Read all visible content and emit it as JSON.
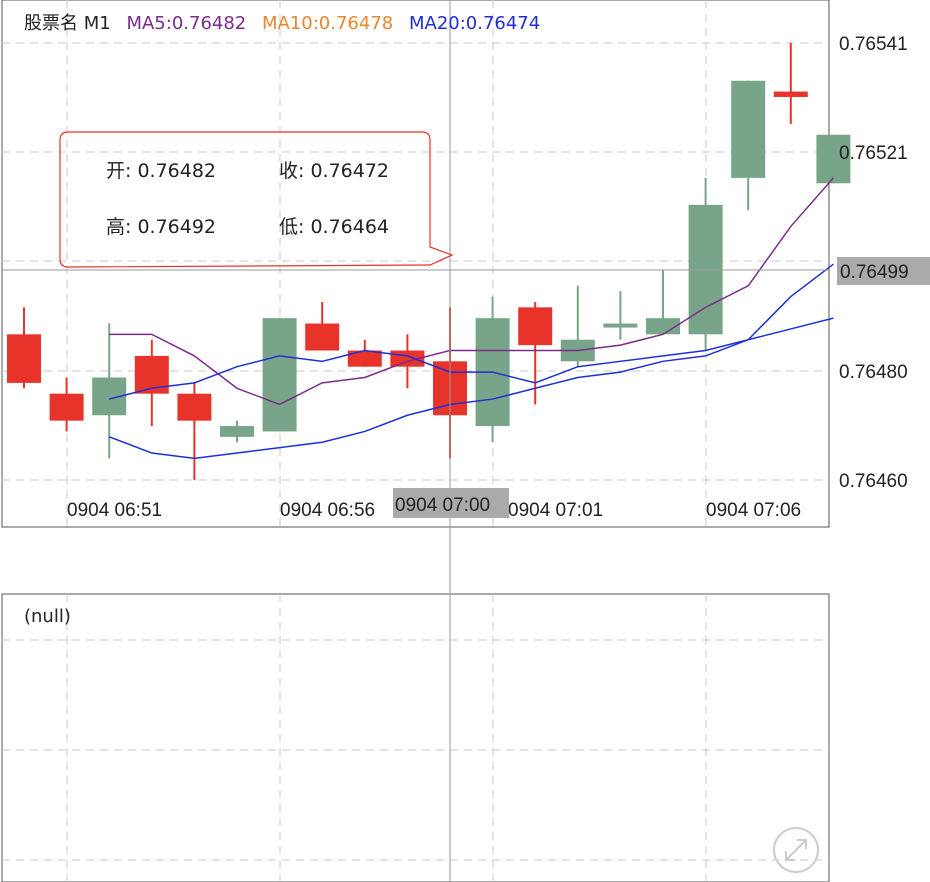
{
  "legend": {
    "title": "股票名 M1",
    "ma5": "MA5:0.76482",
    "ma10": "MA10:0.76478",
    "ma20": "MA20:0.76474",
    "ma5_color": "#7b2b8a",
    "ma10_color": "#e8852c",
    "ma20_color": "#1f2fd8"
  },
  "info": {
    "open": "开: 0.76482",
    "close": "收: 0.76472",
    "high": "高: 0.76492",
    "low": "低: 0.76464"
  },
  "price_labels": [
    "0.76541",
    "0.76521",
    "0.76480",
    "0.76460"
  ],
  "crosshair_price": "0.76499",
  "crosshair_time": "0904 07:00",
  "time_labels": [
    "0904 06:51",
    "0904 06:56",
    "0904 07:01",
    "0904 07:06"
  ],
  "sub_chart_label": "(null)",
  "colors": {
    "up": "#e8332a",
    "down": "#78a589",
    "grid": "#c8c8c8"
  },
  "chart_data": {
    "type": "candlestick",
    "ylim": [
      0.7646,
      0.76545
    ],
    "candles": [
      {
        "o": 0.76487,
        "h": 0.76492,
        "l": 0.76477,
        "c": 0.76478
      },
      {
        "o": 0.76476,
        "h": 0.76479,
        "l": 0.76469,
        "c": 0.76471
      },
      {
        "o": 0.76472,
        "h": 0.76489,
        "l": 0.76464,
        "c": 0.76479
      },
      {
        "o": 0.76483,
        "h": 0.76486,
        "l": 0.7647,
        "c": 0.76476
      },
      {
        "o": 0.76476,
        "h": 0.76478,
        "l": 0.7646,
        "c": 0.76471
      },
      {
        "o": 0.76468,
        "h": 0.76471,
        "l": 0.76467,
        "c": 0.7647
      },
      {
        "o": 0.76469,
        "h": 0.7649,
        "l": 0.76469,
        "c": 0.7649
      },
      {
        "o": 0.76489,
        "h": 0.76493,
        "l": 0.76484,
        "c": 0.76484
      },
      {
        "o": 0.76484,
        "h": 0.76486,
        "l": 0.76481,
        "c": 0.76481
      },
      {
        "o": 0.76484,
        "h": 0.76487,
        "l": 0.76477,
        "c": 0.76481
      },
      {
        "o": 0.76482,
        "h": 0.76492,
        "l": 0.76464,
        "c": 0.76472
      },
      {
        "o": 0.7647,
        "h": 0.76494,
        "l": 0.76467,
        "c": 0.7649
      },
      {
        "o": 0.76492,
        "h": 0.76493,
        "l": 0.76474,
        "c": 0.76485
      },
      {
        "o": 0.76482,
        "h": 0.76496,
        "l": 0.76481,
        "c": 0.76486
      },
      {
        "o": 0.76489,
        "h": 0.76495,
        "l": 0.76486,
        "c": 0.76489
      },
      {
        "o": 0.76487,
        "h": 0.76499,
        "l": 0.76487,
        "c": 0.7649
      },
      {
        "o": 0.76487,
        "h": 0.76516,
        "l": 0.76484,
        "c": 0.76511
      },
      {
        "o": 0.76516,
        "h": 0.76534,
        "l": 0.7651,
        "c": 0.76534
      },
      {
        "o": 0.76532,
        "h": 0.76541,
        "l": 0.76526,
        "c": 0.76531
      },
      {
        "o": 0.76515,
        "h": 0.76524,
        "l": 0.76515,
        "c": 0.76524
      }
    ],
    "ma5": [
      0.76487,
      0.76487,
      0.76483,
      0.76477,
      0.76474,
      0.76478,
      0.76479,
      0.76482,
      0.76484,
      0.76484,
      0.76484,
      0.76484,
      0.76485,
      0.76487,
      0.76492,
      0.76496,
      0.76507,
      0.76516
    ],
    "ma20": [
      0.76468,
      0.76465,
      0.76464,
      0.76465,
      0.76466,
      0.76467,
      0.76469,
      0.76472,
      0.76474,
      0.76475,
      0.76477,
      0.76479,
      0.7648,
      0.76482,
      0.76483,
      0.76486,
      0.76488,
      0.7649
    ],
    "ma20b": [
      0.76475,
      0.76477,
      0.76478,
      0.76481,
      0.76483,
      0.76482,
      0.76484,
      0.76483,
      0.7648,
      0.7648,
      0.76478,
      0.76481,
      0.76482,
      0.76483,
      0.76484,
      0.76486,
      0.76494,
      0.765
    ]
  }
}
